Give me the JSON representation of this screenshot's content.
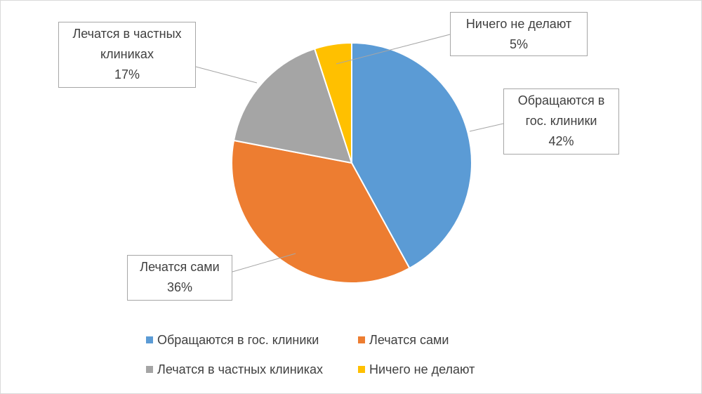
{
  "chart_data": {
    "type": "pie",
    "categories": [
      "Обращаются в гос. клиники",
      "Лечатся сами",
      "Лечатся в частных клиниках",
      "Ничего не делают"
    ],
    "values": [
      42,
      36,
      17,
      5
    ],
    "value_labels": [
      "42%",
      "36%",
      "17%",
      "5%"
    ],
    "colors": [
      "#5b9bd5",
      "#ed7d31",
      "#a5a5a5",
      "#ffc000"
    ],
    "legend": "bottom"
  }
}
